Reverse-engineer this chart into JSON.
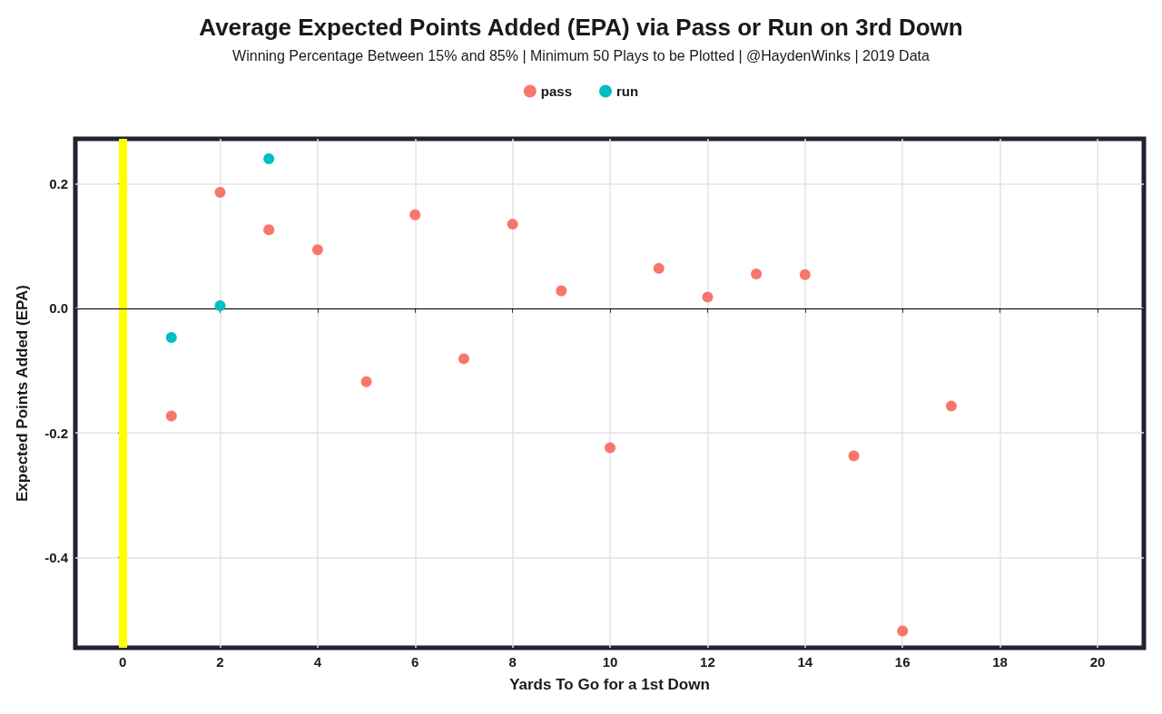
{
  "chart_data": {
    "type": "scatter",
    "title": "Average Expected Points Added (EPA) via Pass or Run on 3rd Down",
    "subtitle": "Winning Percentage Between 15% and 85% | Minimum 50 Plays to be Plotted | @HaydenWinks | 2019 Data",
    "xlabel": "Yards To Go for a 1st Down",
    "ylabel": "Expected Points Added (EPA)",
    "series": [
      {
        "name": "pass",
        "color": "#f8766d",
        "x": [
          1,
          2,
          3,
          4,
          5,
          6,
          7,
          8,
          9,
          10,
          11,
          12,
          13,
          14,
          15,
          16,
          17
        ],
        "values": [
          -0.173,
          0.186,
          0.126,
          0.094,
          -0.118,
          0.15,
          -0.081,
          0.135,
          0.028,
          -0.224,
          0.064,
          0.018,
          0.055,
          0.054,
          -0.237,
          -0.518,
          -0.157
        ]
      },
      {
        "name": "run",
        "color": "#00bfc4",
        "x": [
          1,
          2,
          3
        ],
        "values": [
          -0.047,
          0.004,
          0.24
        ]
      }
    ],
    "xlim": [
      -0.97,
      20.95
    ],
    "xticks": [
      0,
      2,
      4,
      6,
      8,
      10,
      12,
      14,
      16,
      18,
      20
    ],
    "ylim": [
      -0.545,
      0.272
    ],
    "yticks": [
      {
        "value": -0.4,
        "label": "-0.4"
      },
      {
        "value": -0.2,
        "label": "-0.2"
      },
      {
        "value": 0,
        "label": "0.0"
      },
      {
        "value": 0.2,
        "label": "0.2"
      }
    ],
    "ref_lines": [
      {
        "axis": "x",
        "value": 0,
        "color": "#ffff00"
      },
      {
        "axis": "y",
        "value": 0,
        "color": "#000000"
      }
    ],
    "grid": true,
    "legend": "top",
    "marker": "circle"
  }
}
